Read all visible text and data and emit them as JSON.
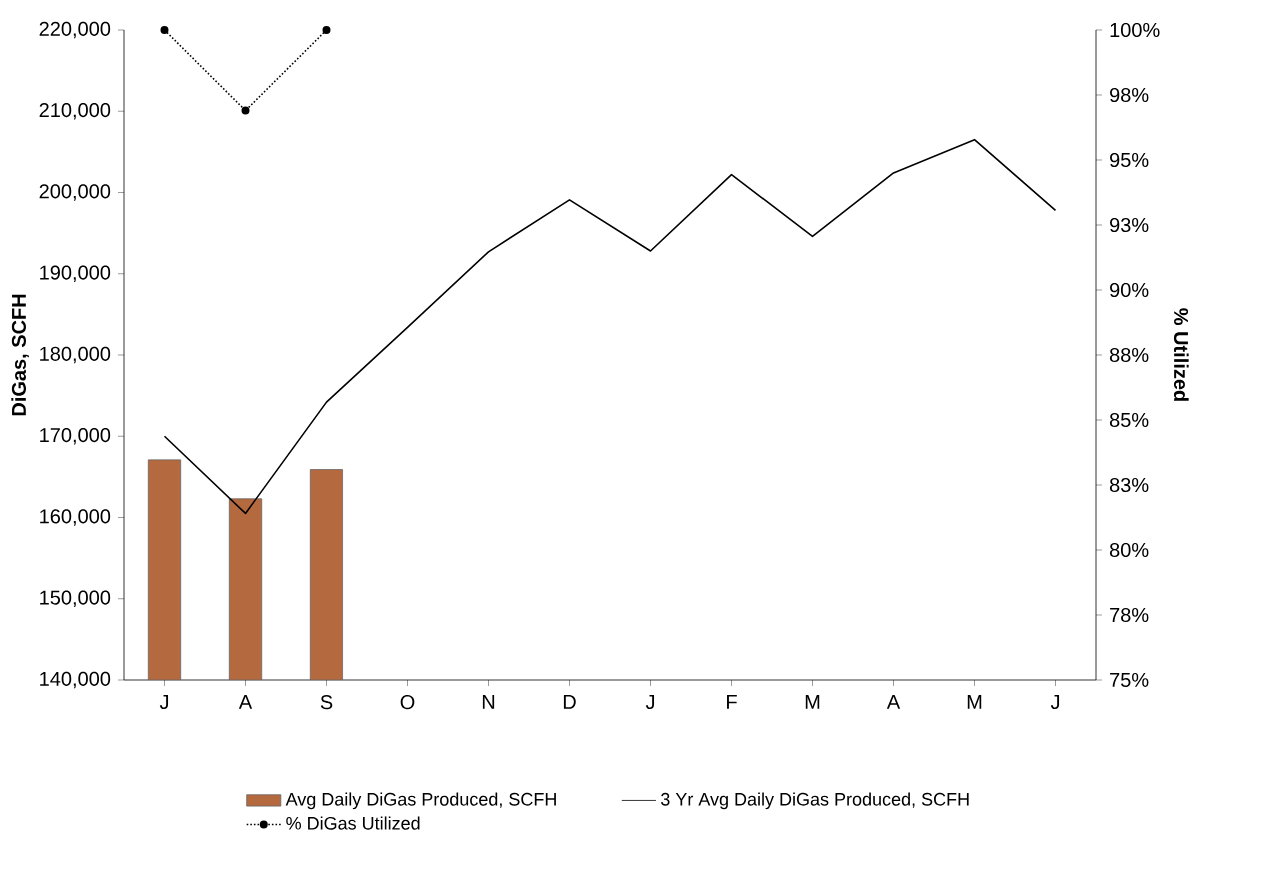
{
  "chart_data": {
    "type": "bar",
    "categories": [
      "J",
      "A",
      "S",
      "O",
      "N",
      "D",
      "J",
      "F",
      "M",
      "A",
      "M",
      "J"
    ],
    "ylabel": "DiGas, SCFH",
    "y2label": "% Utilized",
    "ylim": [
      140000,
      220000
    ],
    "yticks": [
      {
        "value": 140000,
        "label": "140,000"
      },
      {
        "value": 150000,
        "label": "150,000"
      },
      {
        "value": 160000,
        "label": "160,000"
      },
      {
        "value": 170000,
        "label": "170,000"
      },
      {
        "value": 180000,
        "label": "180,000"
      },
      {
        "value": 190000,
        "label": "190,000"
      },
      {
        "value": 200000,
        "label": "200,000"
      },
      {
        "value": 210000,
        "label": "210,000"
      },
      {
        "value": 220000,
        "label": "220,000"
      }
    ],
    "y2lim": [
      75,
      100
    ],
    "y2ticks": [
      {
        "value": 75,
        "label": "75%"
      },
      {
        "value": 77.5,
        "label": "78%"
      },
      {
        "value": 80,
        "label": "80%"
      },
      {
        "value": 82.5,
        "label": "83%"
      },
      {
        "value": 85,
        "label": "85%"
      },
      {
        "value": 87.5,
        "label": "88%"
      },
      {
        "value": 90,
        "label": "90%"
      },
      {
        "value": 92.5,
        "label": "93%"
      },
      {
        "value": 95,
        "label": "95%"
      },
      {
        "value": 97.5,
        "label": "98%"
      },
      {
        "value": 100,
        "label": "100%"
      }
    ],
    "legend": "bottom",
    "grid": false,
    "series": [
      {
        "name": "Avg Daily DiGas Produced, SCFH",
        "color": "#b5693f",
        "values": [
          167100,
          162300,
          165900,
          null,
          null,
          null,
          null,
          null,
          null,
          null,
          null,
          null
        ]
      },
      {
        "name": "3 Yr Avg Daily DiGas Produced, SCFH",
        "type": "line",
        "color": "#000000",
        "marker": "none",
        "line_style": "solid",
        "values": [
          170000,
          160500,
          174200,
          183400,
          192700,
          199100,
          192800,
          202200,
          194600,
          202400,
          206500,
          197800
        ]
      },
      {
        "name": "% DiGas Utilized",
        "type": "line",
        "axis": "y2",
        "color": "#000000",
        "marker": "circle",
        "line_style": "dotted",
        "values": [
          100,
          96.9,
          100,
          null,
          null,
          null,
          null,
          null,
          null,
          null,
          null,
          null
        ]
      }
    ]
  }
}
